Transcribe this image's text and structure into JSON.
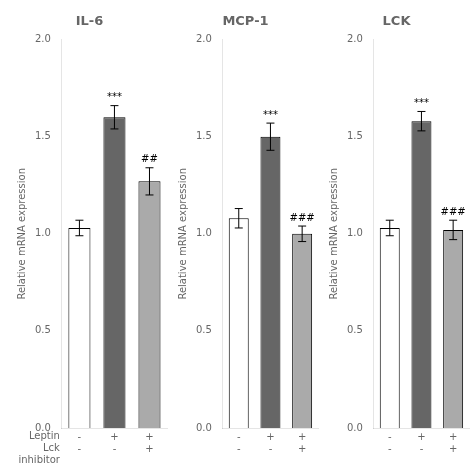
{
  "chart_data": [
    {
      "type": "bar",
      "title": "IL-6",
      "ylabel": "Relative mRNA expression",
      "categories": [
        "-\n-",
        "+\n-",
        "+\n+"
      ],
      "xlabel": [
        "Leptin",
        "Lck\ninhibitor"
      ],
      "values": [
        1.03,
        1.6,
        1.27
      ],
      "errors": [
        0.04,
        0.06,
        0.07
      ],
      "colors": [
        "#ffffff",
        "#666666",
        "#aaaaaa"
      ],
      "annotations": [
        {
          "x": 1,
          "text": "***"
        },
        {
          "x": 2,
          "text": "##"
        }
      ],
      "ylim": [
        0.0,
        2.0
      ],
      "yticks": [
        {
          "value": 0,
          "label": "0.0"
        },
        0.5,
        {
          "value": 1,
          "label": "1.0"
        },
        1.5,
        {
          "value": 2,
          "label": "2.0"
        }
      ],
      "grid": false
    },
    {
      "type": "bar",
      "title": "MCP-1",
      "ylabel": "Relative mRNA expression",
      "categories": [
        "-\n-",
        "+\n-",
        "+\n+"
      ],
      "values": [
        1.08,
        1.5,
        1.0
      ],
      "errors": [
        0.05,
        0.07,
        0.04
      ],
      "colors": [
        "#ffffff",
        "#666666",
        "#aaaaaa"
      ],
      "annotations": [
        {
          "x": 1,
          "text": "***"
        },
        {
          "x": 2,
          "text": "###"
        }
      ],
      "ylim": [
        0.0,
        2.0
      ],
      "yticks": [
        {
          "value": 0,
          "label": "0.0"
        },
        0.5,
        {
          "value": 1,
          "label": "1.0"
        },
        1.5,
        {
          "value": 2,
          "label": "2.0"
        }
      ],
      "grid": false
    },
    {
      "type": "bar",
      "title": "LCK",
      "ylabel": "Relative mRNA expression",
      "categories": [
        "-\n-",
        "+\n-",
        "+\n+"
      ],
      "values": [
        1.03,
        1.58,
        1.02
      ],
      "errors": [
        0.04,
        0.05,
        0.05
      ],
      "colors": [
        "#ffffff",
        "#666666",
        "#aaaaaa"
      ],
      "annotations": [
        {
          "x": 1,
          "text": "***"
        },
        {
          "x": 2,
          "text": "###"
        }
      ],
      "ylim": [
        0.0,
        2.0
      ],
      "yticks": [
        {
          "value": 0,
          "label": "0.0"
        },
        0.5,
        {
          "value": 1,
          "label": "1.0"
        },
        1.5,
        {
          "value": 2,
          "label": "2.0"
        }
      ],
      "grid": false
    }
  ]
}
